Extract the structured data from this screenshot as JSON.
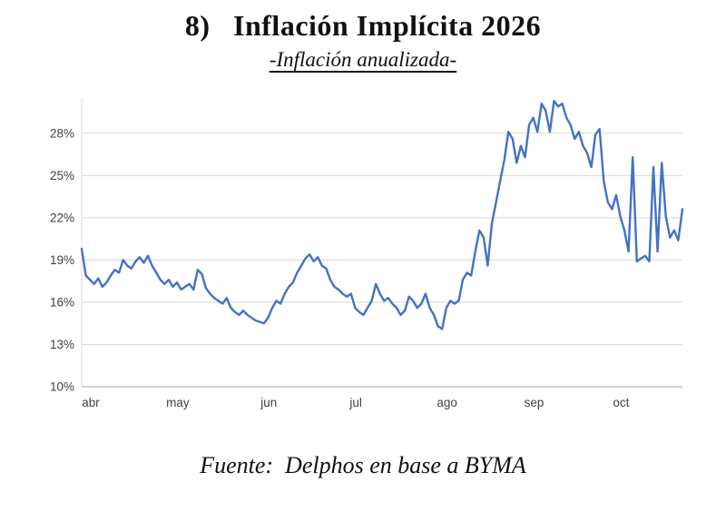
{
  "header": {
    "title": "8)   Inflación Implícita 2026",
    "subtitle": "-Inflación anualizada-"
  },
  "footer": {
    "source": "Fuente:  Delphos en base a BYMA"
  },
  "chart_data": {
    "type": "line",
    "title": "Inflación Implícita 2026",
    "subtitle": "Inflación anualizada",
    "series_name": "Inflación implícita 2026 anualizada",
    "line_color": "#4472C4",
    "grid_color": "#d9d9d9",
    "axis_color": "#a6a6a6",
    "legend_position": "none",
    "grid": true,
    "xlabel": "",
    "ylabel": "",
    "ylim": [
      10,
      30.5
    ],
    "y_ticks": [
      "10%",
      "13%",
      "16%",
      "19%",
      "22%",
      "25%",
      "28%"
    ],
    "y_tick_values": [
      10,
      13,
      16,
      19,
      22,
      25,
      28
    ],
    "x_ticks": [
      "abr",
      "may",
      "jun",
      "jul",
      "ago",
      "sep",
      "oct"
    ],
    "x_tick_indices": [
      0,
      21,
      43,
      64,
      86,
      107,
      128
    ],
    "values": [
      19.8,
      17.9,
      17.6,
      17.3,
      17.7,
      17.1,
      17.4,
      17.9,
      18.3,
      18.1,
      19.0,
      18.6,
      18.4,
      18.9,
      19.2,
      18.8,
      19.3,
      18.6,
      18.1,
      17.6,
      17.3,
      17.6,
      17.1,
      17.4,
      16.9,
      17.1,
      17.3,
      16.9,
      18.3,
      18.0,
      17.0,
      16.6,
      16.3,
      16.1,
      15.9,
      16.3,
      15.6,
      15.3,
      15.1,
      15.4,
      15.1,
      14.9,
      14.7,
      14.6,
      14.5,
      14.9,
      15.6,
      16.1,
      15.9,
      16.6,
      17.1,
      17.4,
      18.1,
      18.6,
      19.1,
      19.4,
      18.9,
      19.2,
      18.6,
      18.4,
      17.6,
      17.1,
      16.9,
      16.6,
      16.4,
      16.6,
      15.6,
      15.3,
      15.1,
      15.6,
      16.1,
      17.3,
      16.6,
      16.1,
      16.3,
      15.9,
      15.6,
      15.1,
      15.4,
      16.4,
      16.1,
      15.6,
      15.9,
      16.6,
      15.6,
      15.1,
      14.3,
      14.1,
      15.6,
      16.1,
      15.9,
      16.1,
      17.6,
      18.1,
      17.9,
      19.6,
      21.1,
      20.6,
      18.6,
      21.6,
      23.1,
      24.6,
      26.1,
      28.1,
      27.6,
      25.9,
      27.1,
      26.3,
      28.6,
      29.1,
      28.1,
      30.1,
      29.6,
      28.1,
      30.3,
      29.9,
      30.1,
      29.1,
      28.6,
      27.6,
      28.1,
      27.1,
      26.6,
      25.6,
      27.9,
      28.3,
      24.6,
      23.1,
      22.6,
      23.6,
      22.1,
      21.1,
      19.6,
      26.3,
      18.9,
      19.1,
      19.3,
      18.9,
      25.6,
      19.6,
      25.9,
      22.1,
      20.6,
      21.1,
      20.4,
      22.6
    ]
  }
}
